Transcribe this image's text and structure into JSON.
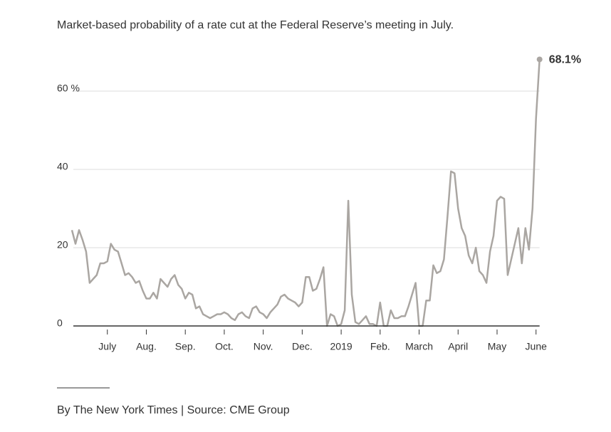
{
  "chart_data": {
    "type": "line",
    "title": "Market-based probability of a rate cut at the Federal Reserve’s meeting in July.",
    "source": "By The New York Times | Source: CME Group",
    "color": "#aaa6a2",
    "grid": true,
    "ylim": [
      0,
      70
    ],
    "yticks": [
      0,
      20,
      40,
      {
        "value": 60,
        "label": "60 %"
      }
    ],
    "categories": [
      null,
      null,
      null,
      null,
      null,
      null,
      null,
      null,
      null,
      null,
      "July",
      null,
      null,
      null,
      null,
      null,
      null,
      null,
      null,
      null,
      null,
      "Aug.",
      null,
      null,
      null,
      null,
      null,
      null,
      null,
      null,
      null,
      null,
      "Sep.",
      null,
      null,
      null,
      null,
      null,
      null,
      null,
      null,
      null,
      null,
      "Oct.",
      null,
      null,
      null,
      null,
      null,
      null,
      null,
      null,
      null,
      null,
      "Nov.",
      null,
      null,
      null,
      null,
      null,
      null,
      null,
      null,
      null,
      null,
      "Dec.",
      null,
      null,
      null,
      null,
      null,
      null,
      null,
      null,
      null,
      null,
      "2019",
      null,
      null,
      null,
      null,
      null,
      null,
      null,
      null,
      null,
      null,
      "Feb.",
      null,
      null,
      null,
      null,
      null,
      null,
      null,
      null,
      null,
      null,
      "March",
      null,
      null,
      null,
      null,
      null,
      null,
      null,
      null,
      null,
      null,
      "April",
      null,
      null,
      null,
      null,
      null,
      null,
      null,
      null,
      null,
      null,
      "May",
      null,
      null,
      null,
      null,
      null,
      null,
      null,
      null,
      null,
      null,
      "June",
      null
    ],
    "values": [
      24.5,
      21,
      24.5,
      22,
      19,
      11,
      12,
      13,
      16,
      16,
      16.5,
      21,
      19.5,
      19,
      16,
      13,
      13.5,
      12.5,
      11,
      11.5,
      9,
      7,
      7,
      8.5,
      7,
      12,
      11,
      10,
      12,
      13,
      10.5,
      9.5,
      7,
      8.5,
      8,
      4.5,
      5,
      3,
      2.5,
      2,
      2.5,
      3,
      3,
      3.5,
      3,
      2,
      1.5,
      3,
      3.5,
      2.5,
      2,
      4.5,
      5,
      3.5,
      3,
      2,
      3.5,
      4.5,
      5.5,
      7.5,
      8,
      7,
      6.5,
      6,
      5,
      6,
      12.5,
      12.5,
      9,
      9.5,
      12,
      15,
      0,
      3,
      2.5,
      0,
      0.5,
      4,
      32,
      8,
      1,
      0.5,
      1.5,
      2.5,
      0.5,
      0.5,
      0,
      6,
      0,
      0,
      4,
      2,
      2,
      2.5,
      2.5,
      5,
      8,
      11,
      0,
      0,
      6.5,
      6.5,
      15.5,
      13.5,
      14,
      17,
      28,
      39.5,
      39,
      30,
      25,
      23,
      18,
      16,
      20,
      14,
      13,
      11,
      19,
      23,
      32,
      33,
      32.5,
      13,
      17,
      21,
      25,
      16,
      25,
      19.5,
      30,
      53,
      68.1
    ],
    "value_labels": [
      null,
      null,
      null,
      null,
      null,
      null,
      null,
      null,
      null,
      null,
      null,
      null,
      null,
      null,
      null,
      null,
      null,
      null,
      null,
      null,
      null,
      null,
      null,
      null,
      null,
      null,
      null,
      null,
      null,
      null,
      null,
      null,
      null,
      null,
      null,
      null,
      null,
      null,
      null,
      null,
      null,
      null,
      null,
      null,
      null,
      null,
      null,
      null,
      null,
      null,
      null,
      null,
      null,
      null,
      null,
      null,
      null,
      null,
      null,
      null,
      null,
      null,
      null,
      null,
      null,
      null,
      null,
      null,
      null,
      null,
      null,
      null,
      null,
      null,
      null,
      null,
      null,
      null,
      null,
      null,
      null,
      null,
      null,
      null,
      null,
      null,
      null,
      null,
      null,
      null,
      null,
      null,
      null,
      null,
      null,
      null,
      null,
      null,
      null,
      null,
      null,
      null,
      null,
      null,
      null,
      null,
      null,
      null,
      null,
      null,
      null,
      null,
      null,
      null,
      null,
      null,
      null,
      null,
      null,
      null,
      null,
      null,
      null,
      null,
      null,
      null,
      null,
      null,
      null,
      null,
      null,
      null,
      "68.1%"
    ]
  }
}
